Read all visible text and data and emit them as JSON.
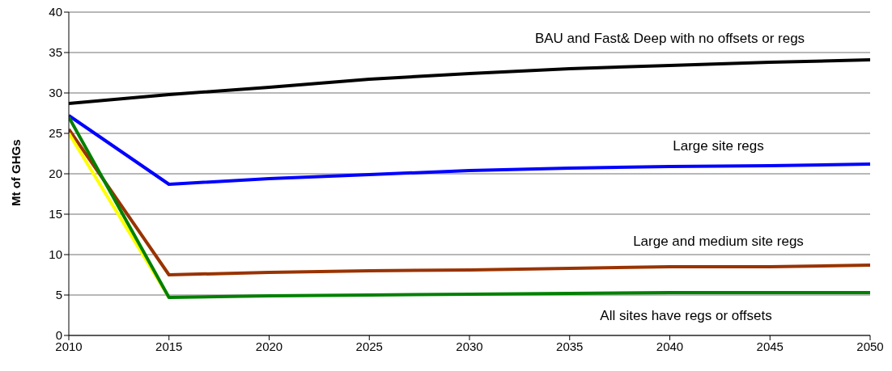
{
  "chart_data": {
    "type": "line",
    "ylabel": "Mt of GHGs",
    "x": [
      2010,
      2015,
      2020,
      2025,
      2030,
      2035,
      2040,
      2045,
      2050
    ],
    "xlim": [
      2010,
      2050
    ],
    "xticks": [
      2010,
      2015,
      2020,
      2025,
      2030,
      2035,
      2040,
      2045,
      2050
    ],
    "ylim": [
      0,
      40
    ],
    "yticks": [
      0,
      5,
      10,
      15,
      20,
      25,
      30,
      35,
      40
    ],
    "grid": "y",
    "marker": "none",
    "line_style": "solid",
    "series": [
      {
        "name": "BAU and Fast& Deep with no offsets or regs",
        "color": "#000000",
        "values": [
          28.7,
          29.8,
          30.7,
          31.7,
          32.4,
          33.0,
          33.4,
          33.8,
          34.1
        ]
      },
      {
        "name": "Large site regs",
        "color": "#0000ff",
        "values": [
          27.2,
          18.7,
          19.4,
          19.9,
          20.4,
          20.7,
          20.9,
          21.0,
          21.2
        ]
      },
      {
        "name": "Large and medium site regs",
        "color": "#993300",
        "values": [
          25.5,
          7.5,
          7.8,
          8.0,
          8.1,
          8.3,
          8.5,
          8.5,
          8.7
        ]
      },
      {
        "color": "#ffff00",
        "values": [
          25.0,
          4.7,
          null,
          null,
          null,
          null,
          null,
          null,
          null
        ]
      },
      {
        "name": "All sites have regs or offsets",
        "color": "#008000",
        "values": [
          27.0,
          4.7,
          4.9,
          5.0,
          5.1,
          5.2,
          5.3,
          5.3,
          5.3
        ]
      }
    ]
  }
}
